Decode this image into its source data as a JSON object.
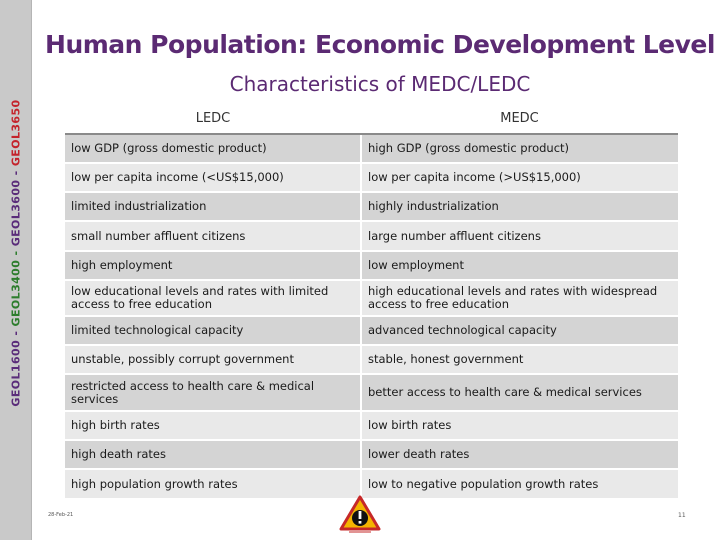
{
  "sidebar": {
    "course_code_parts": [
      "GEOL1600 - ",
      "GEOL3400 - ",
      "GEOL3600 - ",
      "GEOL3650"
    ]
  },
  "header": {
    "title": "Human Population: Economic Development Level",
    "subtitle": "Characteristics of MEDC/LEDC"
  },
  "table": {
    "headers": [
      "LEDC",
      "MEDC"
    ],
    "rows": [
      {
        "ledc": "low GDP (gross domestic product)",
        "medc": "high GDP (gross domestic product)"
      },
      {
        "ledc": "low per capita income (<US$15,000)",
        "medc": "low per capita income (>US$15,000)"
      },
      {
        "ledc": "limited industrialization",
        "medc": "highly industrialization"
      },
      {
        "ledc": "small number affluent citizens",
        "medc": "large number affluent citizens"
      },
      {
        "ledc": "high employment",
        "medc": "low employment"
      },
      {
        "ledc": "low educational levels and rates with limited access to free education",
        "medc": "high educational levels and rates with widespread access to free education"
      },
      {
        "ledc": "limited technological capacity",
        "medc": "advanced technological capacity"
      },
      {
        "ledc": "unstable, possibly corrupt government",
        "medc": "stable, honest government"
      },
      {
        "ledc": "restricted access to health care & medical services",
        "medc": "better access to health care & medical services"
      },
      {
        "ledc": "high birth rates",
        "medc": "low birth rates"
      },
      {
        "ledc": "high death rates",
        "medc": "lower death rates"
      },
      {
        "ledc": "high population growth rates",
        "medc": "low to negative population growth rates"
      }
    ]
  },
  "footer": {
    "date": "28-Feb-21",
    "page": "11"
  },
  "colors": {
    "title": "#5b2a73",
    "sidebar_purple": "#5a2c7a",
    "sidebar_green": "#2d7d2d",
    "sidebar_red": "#c4232b",
    "row_dark": "#d4d4d4",
    "row_light": "#e9e9e9"
  },
  "icons": {
    "footer_logo": "warning-sign-icon"
  }
}
